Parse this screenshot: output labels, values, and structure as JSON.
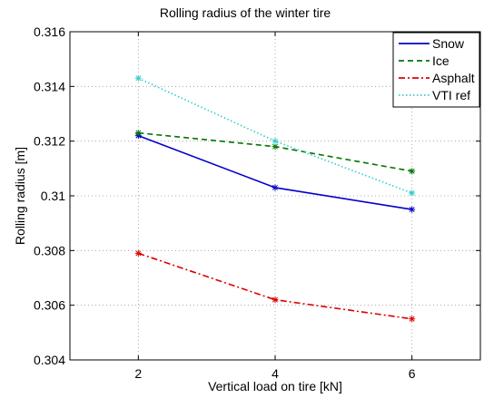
{
  "chart_data": {
    "type": "line",
    "title": "Rolling radius of the winter tire",
    "xlabel": "Vertical load on tire [kN]",
    "ylabel": "Rolling radius [m]",
    "x": [
      2,
      4,
      6
    ],
    "xlim": [
      1,
      7
    ],
    "ylim": [
      0.304,
      0.316
    ],
    "xticks": [
      "2",
      "4",
      "6"
    ],
    "yticks": [
      "0.304",
      "0.306",
      "0.308",
      "0.31",
      "0.312",
      "0.314",
      "0.316"
    ],
    "grid": true,
    "legend_position": "top-right",
    "series": [
      {
        "name": "Snow",
        "values": [
          0.3122,
          0.3103,
          0.3095
        ],
        "color": "#0000cc",
        "style": "solid"
      },
      {
        "name": "Ice",
        "values": [
          0.3123,
          0.3118,
          0.3109
        ],
        "color": "#007700",
        "style": "dashed"
      },
      {
        "name": "Asphalt",
        "values": [
          0.3079,
          0.3062,
          0.3055
        ],
        "color": "#dd0000",
        "style": "dashdot"
      },
      {
        "name": "VTI ref",
        "values": [
          0.3143,
          0.312,
          0.3101
        ],
        "color": "#33cccc",
        "style": "dotted"
      }
    ]
  }
}
